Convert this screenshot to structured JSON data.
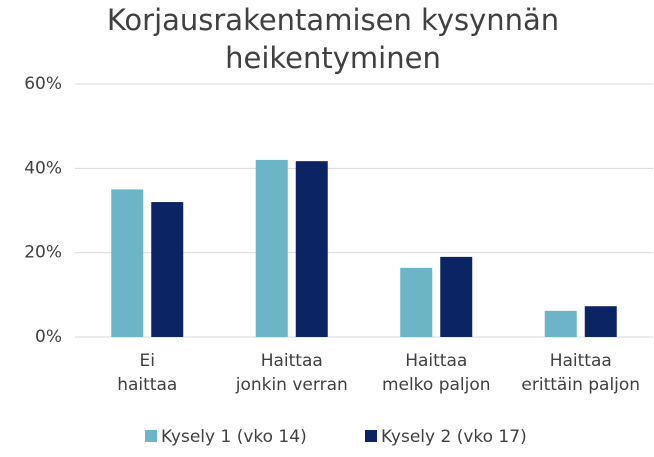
{
  "chart_data": {
    "type": "bar",
    "title": "Korjausrakentamisen kysynnän heikentyminen",
    "categories": [
      "Ei haittaa",
      "Haittaa jonkin verran",
      "Haittaa melko paljon",
      "Haittaa erittäin paljon"
    ],
    "series": [
      {
        "name": "Kysely 1 (vko 14)",
        "color": "#6cb4c8",
        "values": [
          35,
          42,
          16.4,
          6.2
        ]
      },
      {
        "name": "Kysely 2 (vko 17)",
        "color": "#0b2463",
        "values": [
          32,
          41.7,
          19,
          7.3
        ]
      }
    ],
    "ylim": [
      0,
      60
    ],
    "yticks": [
      {
        "value": 0,
        "label": "0%"
      },
      {
        "value": 20,
        "label": "20%"
      },
      {
        "value": 40,
        "label": "40%"
      },
      {
        "value": 60,
        "label": "60%"
      }
    ],
    "grid": true,
    "legend": "bottom"
  }
}
